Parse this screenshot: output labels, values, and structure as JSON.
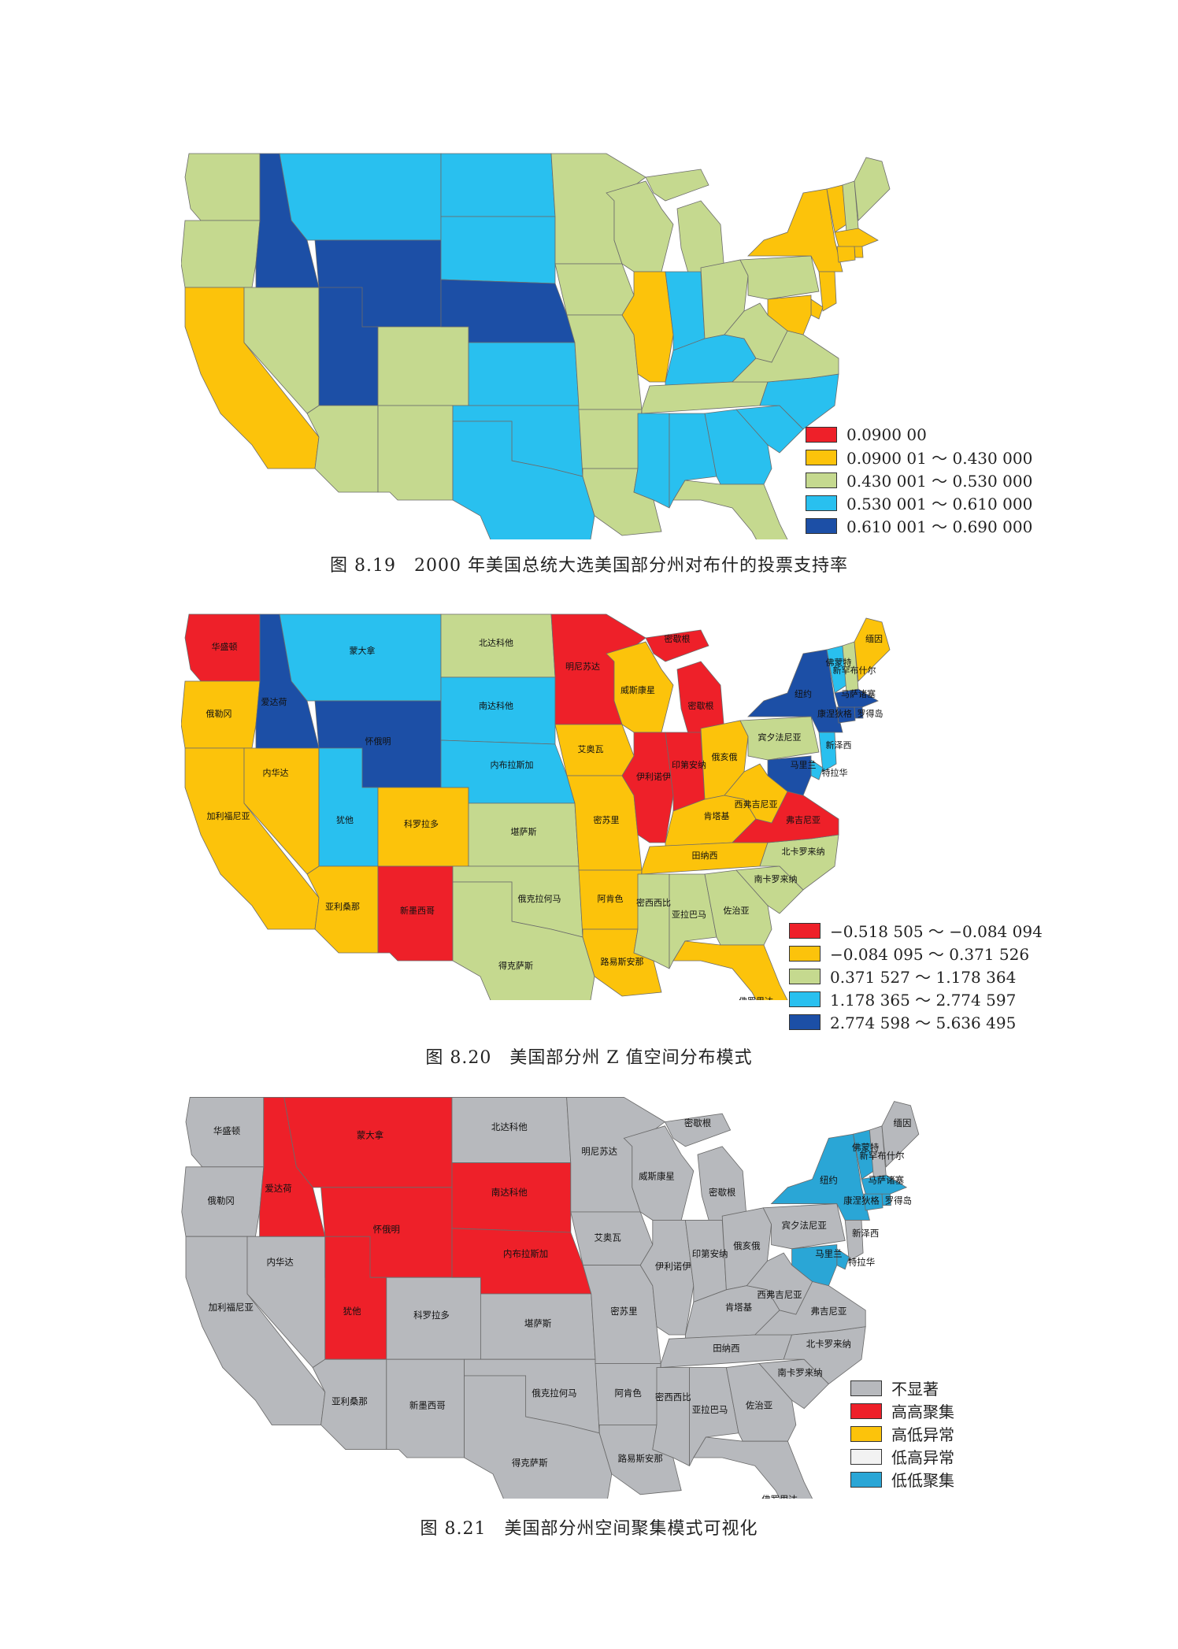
{
  "colors": {
    "red": "#ee2029",
    "orange": "#fcc30b",
    "lightgreen": "#c5d98f",
    "cyan": "#29c0ef",
    "darkblue": "#1c4fa6",
    "gray": "#b7b9bd",
    "lowlow": "#2aa6d6",
    "white": "#f2f2f2"
  },
  "fig1": {
    "caption": "图 8.19　2000 年美国总统大选美国部分州对布什的投票支持率",
    "legend": [
      {
        "label": "0.0900 00",
        "color": "#ee2029"
      },
      {
        "label": "0.0900 01 ～ 0.430 000",
        "color": "#fcc30b"
      },
      {
        "label": "0.430 001 ～ 0.530 000",
        "color": "#c5d98f"
      },
      {
        "label": "0.530 001 ～ 0.610 000",
        "color": "#29c0ef"
      },
      {
        "label": "0.610 001 ～ 0.690 000",
        "color": "#1c4fa6"
      }
    ]
  },
  "fig2": {
    "caption": "图 8.20　美国部分州 Z 值空间分布模式",
    "legend": [
      {
        "label": "−0.518 505 ～ −0.084 094",
        "color": "#ee2029"
      },
      {
        "label": "−0.084 095 ～ 0.371 526",
        "color": "#fcc30b"
      },
      {
        "label": "0.371 527 ～ 1.178 364",
        "color": "#c5d98f"
      },
      {
        "label": "1.178 365 ～ 2.774 597",
        "color": "#29c0ef"
      },
      {
        "label": "2.774 598 ～ 5.636 495",
        "color": "#1c4fa6"
      }
    ]
  },
  "fig3": {
    "caption": "图 8.21　美国部分州空间聚集模式可视化",
    "legend": [
      {
        "label": "不显著",
        "color": "#b7b9bd"
      },
      {
        "label": "高高聚集",
        "color": "#ee2029"
      },
      {
        "label": "高低异常",
        "color": "#fcc30b"
      },
      {
        "label": "低高异常",
        "color": "#f2f2f2"
      },
      {
        "label": "低低聚集",
        "color": "#2aa6d6"
      }
    ]
  },
  "state_labels": {
    "wa": "华盛顿",
    "or": "俄勒冈",
    "ca": "加利福尼亚",
    "nv": "内华达",
    "id": "爱达荷",
    "mt": "蒙大拿",
    "wy": "怀俄明",
    "ut": "犹他",
    "co": "科罗拉多",
    "az": "亚利桑那",
    "nm": "新墨西哥",
    "nd": "北达科他",
    "sd": "南达科他",
    "ne": "内布拉斯加",
    "ks": "堪萨斯",
    "ok": "俄克拉何马",
    "tx": "得克萨斯",
    "mn": "明尼苏达",
    "ia": "艾奥瓦",
    "mo": "密苏里",
    "ar": "阿肯色",
    "la": "路易斯安那",
    "wi": "威斯康星",
    "il": "伊利诺伊",
    "mi": "密歇根",
    "mi2": "密歇根",
    "in": "印第安纳",
    "oh": "俄亥俄",
    "ky": "肯塔基",
    "tn": "田纳西",
    "ms": "密西西比",
    "al": "亚拉巴马",
    "ga": "佐治亚",
    "fl": "佛罗里达",
    "sc": "南卡罗来纳",
    "nc": "北卡罗来纳",
    "va": "弗吉尼亚",
    "wv": "西弗吉尼亚",
    "pa": "宾夕法尼亚",
    "ny": "纽约",
    "vt": "佛蒙特",
    "nh": "新罕布什尔",
    "me": "缅因",
    "ma": "马萨诸塞",
    "ri": "罗得岛",
    "ct": "康涅狄格",
    "nj": "新泽西",
    "de": "特拉华",
    "md": "马里兰"
  }
}
